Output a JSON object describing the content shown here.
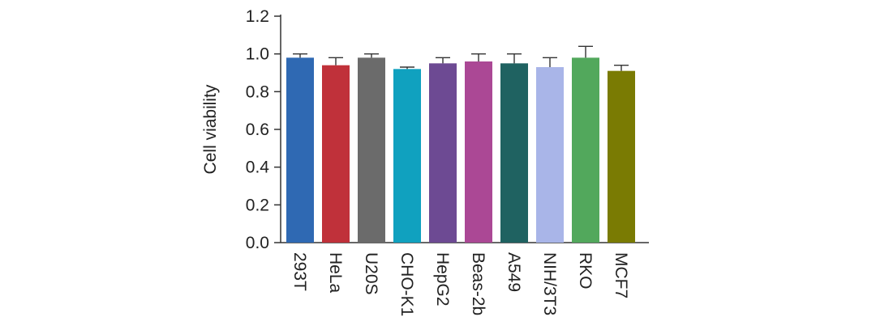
{
  "chart_data": {
    "type": "bar",
    "title": "",
    "xlabel": "",
    "ylabel": "Cell viability",
    "ylim": [
      0,
      1.2
    ],
    "yticks": [
      "0.0",
      "0.2",
      "0.4",
      "0.6",
      "0.8",
      "1.0",
      "1.2"
    ],
    "grid": false,
    "legend": "none",
    "categories": [
      "293T",
      "HeLa",
      "U20S",
      "CHO-K1",
      "HepG2",
      "Beas-2b",
      "A549",
      "NIH/3T3",
      "RKO",
      "MCF7"
    ],
    "values": [
      0.98,
      0.94,
      0.98,
      0.92,
      0.95,
      0.96,
      0.95,
      0.93,
      0.98,
      0.91
    ],
    "errors": [
      0.02,
      0.04,
      0.02,
      0.01,
      0.03,
      0.04,
      0.05,
      0.05,
      0.06,
      0.03
    ],
    "colors": [
      "#2f69b3",
      "#c0313a",
      "#6b6b6b",
      "#10a1bf",
      "#6d4a93",
      "#ab4895",
      "#1f6261",
      "#a9b5e8",
      "#52a85c",
      "#7a7b03"
    ]
  }
}
